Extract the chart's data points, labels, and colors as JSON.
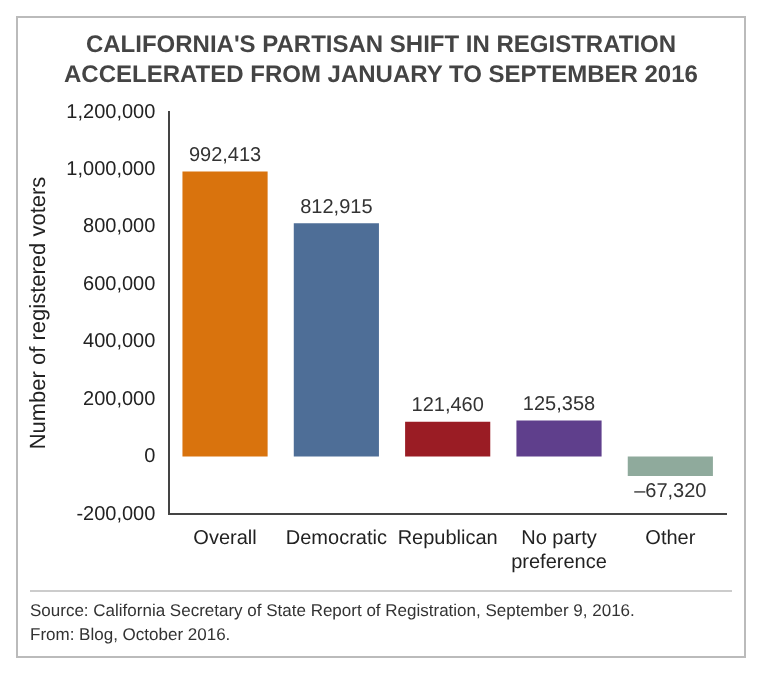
{
  "chart_data": {
    "type": "bar",
    "title": "CALIFORNIA'S PARTISAN SHIFT IN REGISTRATION ACCELERATED FROM JANUARY TO SEPTEMBER 2016",
    "ylabel": "Number of registered voters",
    "categories": [
      "Overall",
      "Democratic",
      "Republican",
      "No party preference",
      "Other"
    ],
    "values": [
      992413,
      812915,
      121460,
      125358,
      -67320
    ],
    "colors": [
      "#d9730d",
      "#4e6e97",
      "#9a1c24",
      "#5f3f8c",
      "#8faa9c"
    ],
    "ylim": [
      -200000,
      1200000
    ],
    "yticks": [
      {
        "value": -200000,
        "label": "-200,000"
      },
      {
        "value": 0,
        "label": "0"
      },
      {
        "value": 200000,
        "label": "200,000"
      },
      {
        "value": 400000,
        "label": "400,000"
      },
      {
        "value": 600000,
        "label": "600,000"
      },
      {
        "value": 800000,
        "label": "800,000"
      },
      {
        "value": 1000000,
        "label": "1,000,000"
      },
      {
        "value": 1200000,
        "label": "1,200,000"
      }
    ],
    "value_labels": [
      "992,413",
      "812,915",
      "121,460",
      "125,358",
      "–67,320"
    ],
    "grid": false,
    "legend": false,
    "annotations": [
      "Source: California Secretary of State Report of Registration, September 9, 2016.",
      "From: Blog, October 2016."
    ]
  }
}
